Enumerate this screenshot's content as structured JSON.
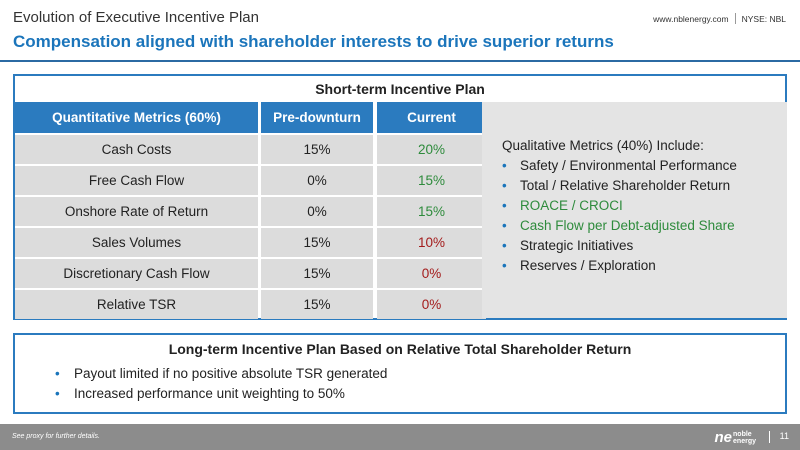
{
  "header": {
    "title": "Evolution of Executive Incentive Plan",
    "subtitle": "Compensation aligned with shareholder interests to drive superior returns",
    "website": "www.nblenergy.com",
    "ticker": "NYSE: NBL"
  },
  "short_term": {
    "title": "Short-term Incentive Plan",
    "columns": [
      "Quantitative Metrics (60%)",
      "Pre-downturn",
      "Current"
    ],
    "rows": [
      {
        "metric": "Cash Costs",
        "pre": "15%",
        "current": "20%",
        "tone": "green"
      },
      {
        "metric": "Free Cash Flow",
        "pre": "0%",
        "current": "15%",
        "tone": "green"
      },
      {
        "metric": "Onshore Rate of Return",
        "pre": "0%",
        "current": "15%",
        "tone": "green"
      },
      {
        "metric": "Sales Volumes",
        "pre": "15%",
        "current": "10%",
        "tone": "red"
      },
      {
        "metric": "Discretionary Cash Flow",
        "pre": "15%",
        "current": "0%",
        "tone": "red"
      },
      {
        "metric": "Relative TSR",
        "pre": "15%",
        "current": "0%",
        "tone": "red"
      }
    ],
    "qualitative": {
      "title": "Qualitative Metrics (40%) Include:",
      "items": [
        {
          "text": "Safety / Environmental Performance",
          "highlight": false
        },
        {
          "text": "Total / Relative Shareholder Return",
          "highlight": false
        },
        {
          "text": "ROACE / CROCI",
          "highlight": true
        },
        {
          "text": "Cash Flow per Debt-adjusted Share",
          "highlight": true
        },
        {
          "text": "Strategic Initiatives",
          "highlight": false
        },
        {
          "text": "Reserves / Exploration",
          "highlight": false
        }
      ]
    }
  },
  "long_term": {
    "title": "Long-term Incentive Plan Based on Relative Total Shareholder Return",
    "items": [
      "Payout limited if no positive absolute TSR generated",
      "Increased performance unit weighting to 50%"
    ]
  },
  "footer": {
    "note": "See proxy for further details.",
    "logo_mark": "ne",
    "logo_line1": "noble",
    "logo_line2": "energy",
    "page_number": "11"
  },
  "colors": {
    "brand_blue": "#2b7bbf",
    "increase_green": "#2e8b3c",
    "decrease_red": "#a31b1b"
  }
}
